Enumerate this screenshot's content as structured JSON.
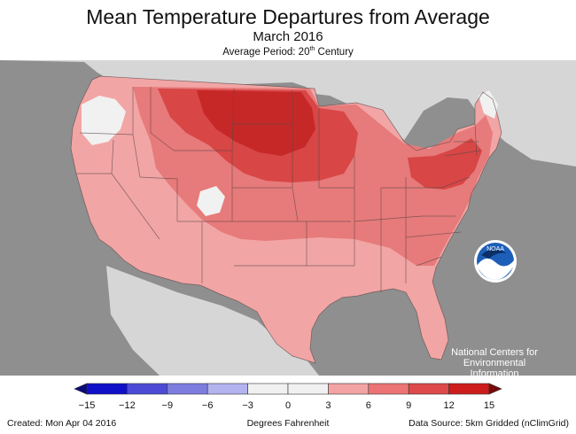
{
  "header": {
    "title": "Mean Temperature Departures from Average",
    "subtitle": "March 2016",
    "period_prefix": "Average Period: 20",
    "period_sup": "th",
    "period_suffix": " Century"
  },
  "logo": {
    "text": "NOAA",
    "agency_lines": [
      "National Centers for",
      "Environmental",
      "Information"
    ]
  },
  "legend": {
    "ticks": [
      "−15",
      "−12",
      "−9",
      "−6",
      "−3",
      "0",
      "3",
      "6",
      "9",
      "12",
      "15"
    ],
    "colors": [
      "#1010c8",
      "#4b4bd6",
      "#7d7de0",
      "#b3b3ef",
      "#f1f1f1",
      "#f1f1f1",
      "#f3a3a3",
      "#ec7474",
      "#de4a4a",
      "#cc1c1c"
    ],
    "unit": "Degrees Fahrenheit"
  },
  "footer": {
    "created": "Created: Mon Apr 04 2016",
    "source": "Data Source: 5km Gridded (nClimGrid)"
  },
  "colors": {
    "background_land": "#8f8f8f",
    "canada_land": "#d6d6d6",
    "warm_light": "#f2a5a5",
    "warm_mid": "#e77a7a",
    "warm_strong": "#d84646",
    "warm_deep": "#c62828",
    "near_normal": "#f1f1f1"
  }
}
